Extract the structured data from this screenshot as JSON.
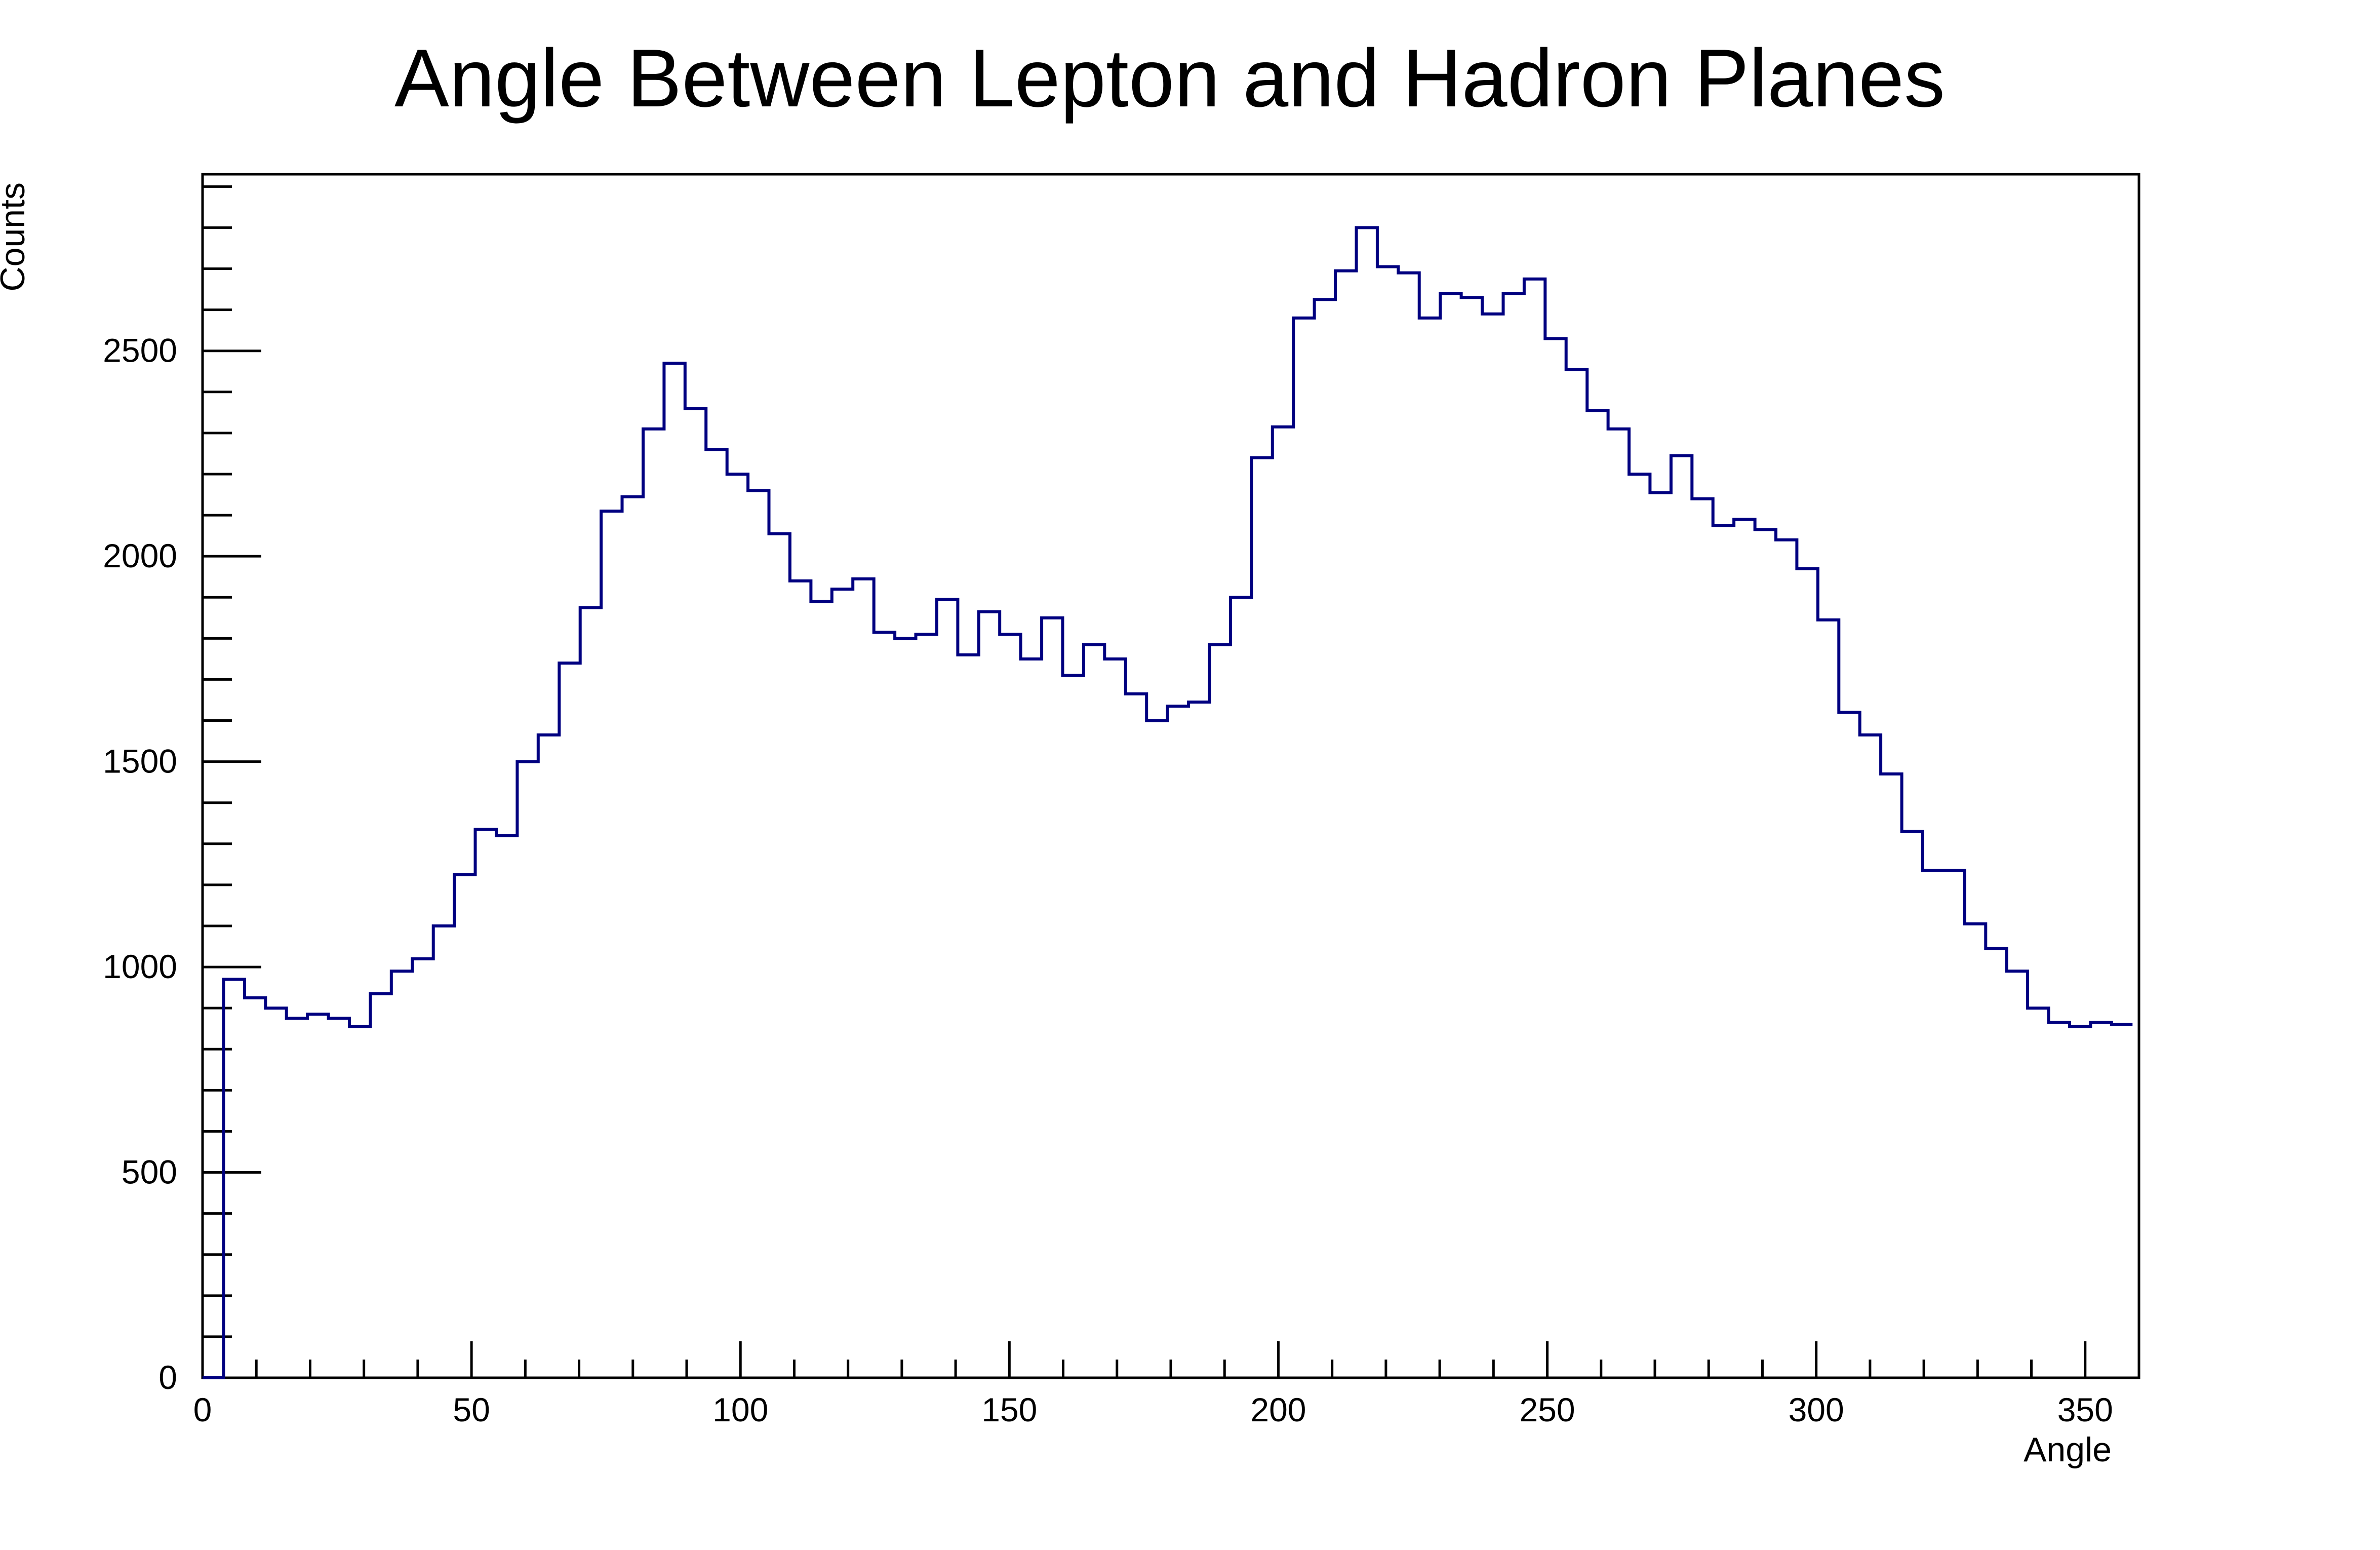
{
  "chart_data": {
    "type": "histogram",
    "title": "Angle Between Lepton and Hadron Planes",
    "xlabel": "Angle",
    "ylabel": "Counts",
    "xlim": [
      0,
      360
    ],
    "ylim": [
      0,
      2930
    ],
    "x_major_ticks": [
      0,
      50,
      100,
      150,
      200,
      250,
      300,
      350
    ],
    "x_minor_step": 10,
    "y_major_ticks": [
      0,
      500,
      1000,
      1500,
      2000,
      2500
    ],
    "y_minor_step": 100,
    "grid": false,
    "line_color": "#000080",
    "bin_width": 3.9,
    "bin_start": 0,
    "values": [
      0,
      970,
      925,
      900,
      875,
      885,
      875,
      855,
      935,
      990,
      1020,
      1100,
      1225,
      1335,
      1320,
      1500,
      1565,
      1740,
      1875,
      2110,
      2145,
      2310,
      2470,
      2360,
      2260,
      2200,
      2160,
      2055,
      1940,
      1890,
      1920,
      1945,
      1815,
      1800,
      1810,
      1895,
      1760,
      1865,
      1810,
      1750,
      1850,
      1710,
      1785,
      1750,
      1665,
      1600,
      1635,
      1645,
      1785,
      1900,
      2240,
      2315,
      2580,
      2625,
      2695,
      2800,
      2705,
      2690,
      2580,
      2640,
      2630,
      2590,
      2640,
      2675,
      2530,
      2455,
      2355,
      2310,
      2200,
      2155,
      2245,
      2140,
      2075,
      2090,
      2065,
      2040,
      1970,
      1845,
      1620,
      1565,
      1470,
      1330,
      1235,
      1235,
      1105,
      1045,
      990,
      900,
      865,
      855,
      865,
      860
    ]
  }
}
